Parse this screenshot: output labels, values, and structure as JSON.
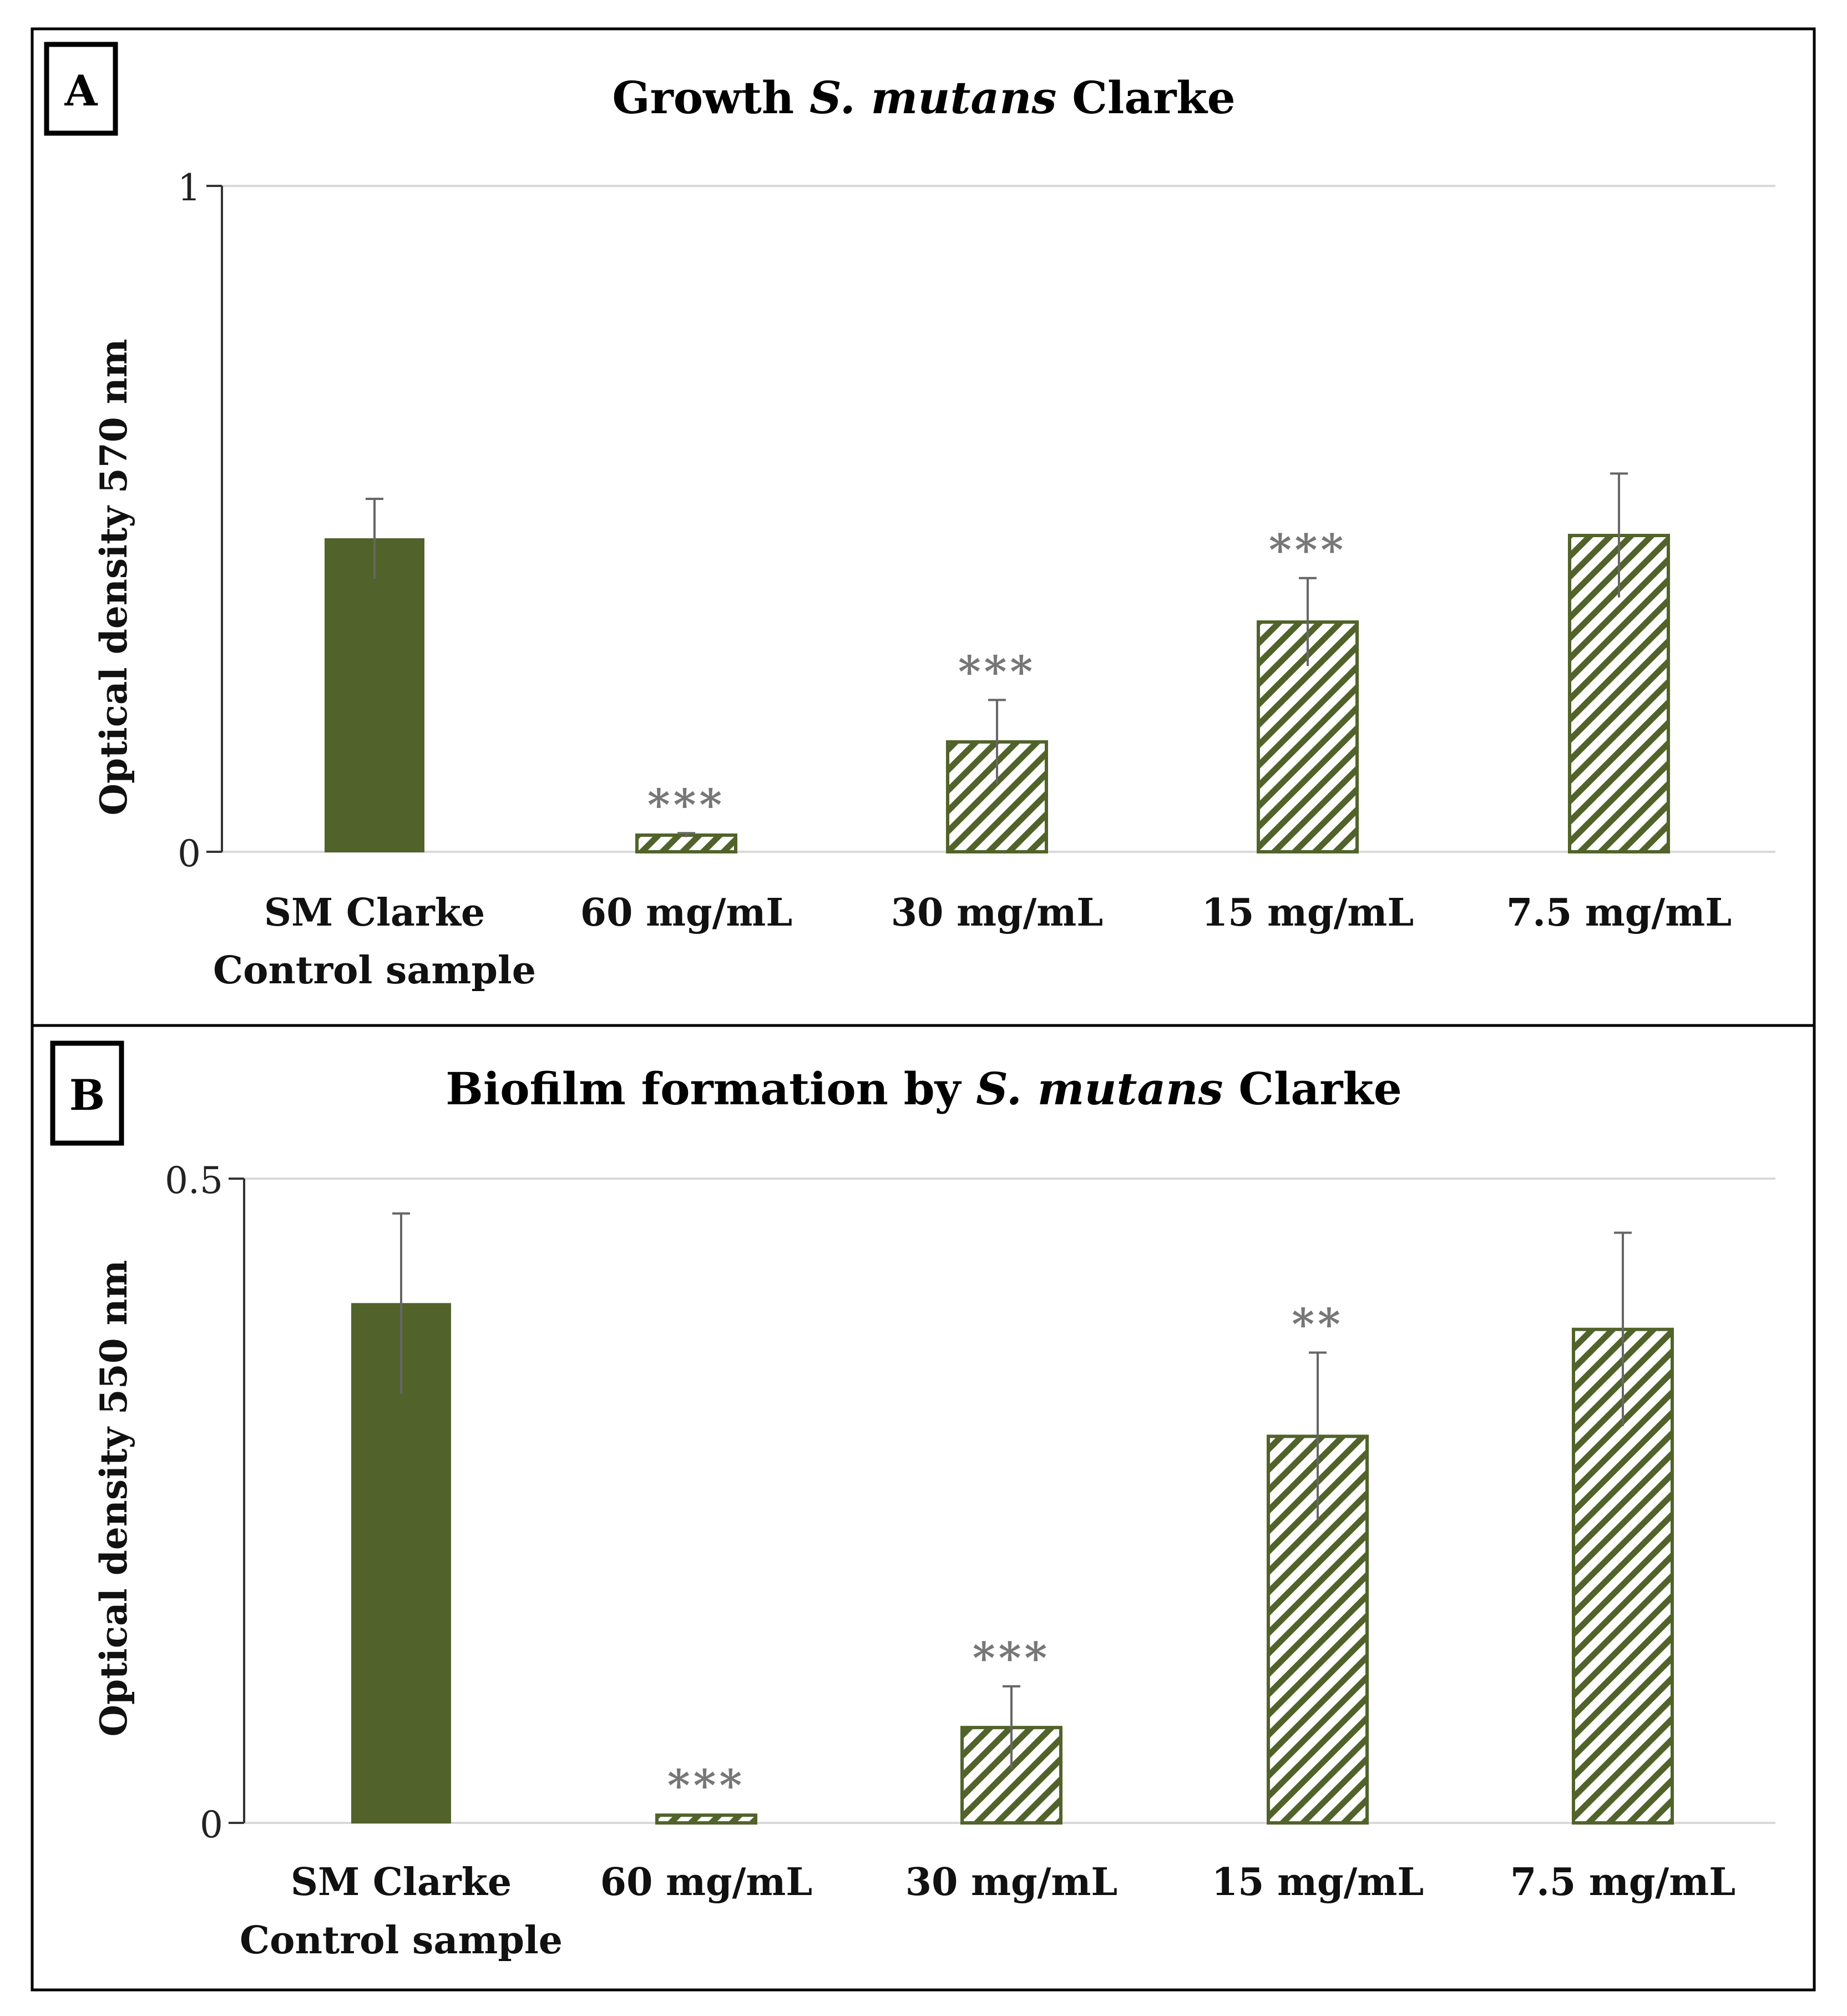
{
  "colors": {
    "bar": "#51632a",
    "error": "#666666",
    "sig": "#777777",
    "grid": "#d9d9d9",
    "frame": "#000000"
  },
  "chart_data": [
    {
      "type": "bar",
      "panel": "A",
      "title": {
        "prefix": "Growth ",
        "italic": "S. mutans",
        "suffix": " Clarke"
      },
      "ylabel": "Optical density  570 nm",
      "ylim": [
        0,
        1
      ],
      "yticks": [
        "0",
        "1"
      ],
      "categories": [
        [
          "SM Clarke",
          "Control sample"
        ],
        [
          "60 mg/mL"
        ],
        [
          "30 mg/mL"
        ],
        [
          "15 mg/mL"
        ],
        [
          "7.5 mg/mL"
        ]
      ],
      "values": [
        0.47,
        0.025,
        0.165,
        0.345,
        0.475
      ],
      "errors": [
        0.06,
        0.003,
        0.063,
        0.066,
        0.093
      ],
      "patterns": [
        "solid",
        "hatch",
        "hatch",
        "hatch",
        "hatch"
      ],
      "significance": [
        "",
        "***",
        "***",
        "***",
        ""
      ]
    },
    {
      "type": "bar",
      "panel": "B",
      "title": {
        "prefix": "Biofilm  formation  by ",
        "italic": "S. mutans",
        "suffix": "  Clarke"
      },
      "ylabel": "Optical density  550 nm",
      "ylim": [
        0,
        0.5
      ],
      "yticks": [
        "0",
        "0.5"
      ],
      "categories": [
        [
          "SM Clarke",
          "Control sample"
        ],
        [
          "60 mg/mL"
        ],
        [
          "30 mg/mL"
        ],
        [
          "15 mg/mL"
        ],
        [
          "7.5 mg/mL"
        ]
      ],
      "values": [
        0.403,
        0.006,
        0.074,
        0.3,
        0.383
      ],
      "errors": [
        0.07,
        0.001,
        0.032,
        0.065,
        0.075
      ],
      "patterns": [
        "solid",
        "hatch",
        "hatch",
        "hatch",
        "hatch"
      ],
      "significance": [
        "",
        "***",
        "***",
        "**",
        ""
      ]
    }
  ]
}
